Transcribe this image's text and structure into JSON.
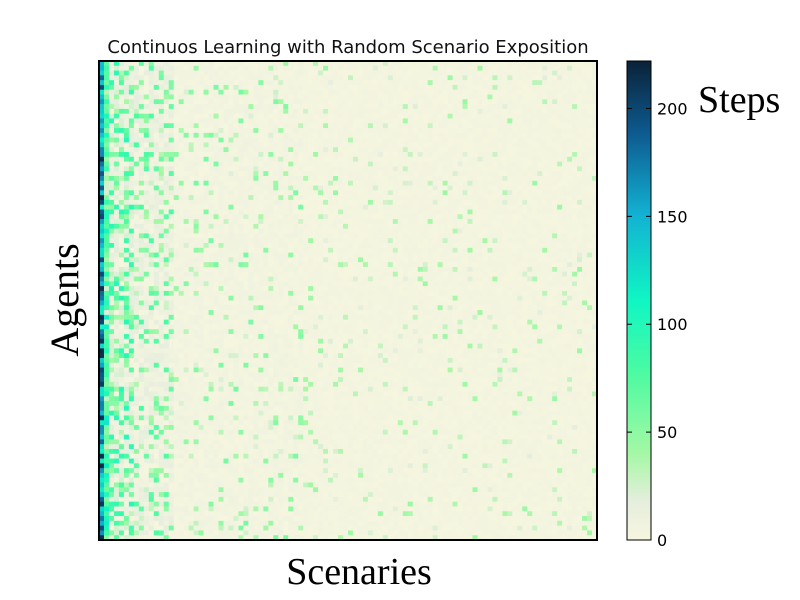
{
  "chart_data": {
    "type": "heatmap",
    "title": "Continuos Learning with Random Scenario Exposition",
    "xlabel": "Scenaries",
    "ylabel": "Agents",
    "colorbar": {
      "label": "Steps",
      "ticks": [
        0,
        50,
        100,
        150,
        200
      ],
      "range": [
        0,
        222
      ],
      "colormap": "YlGnBu-like (cream → light green → aqua → teal → navy)",
      "stops": [
        "#f6f6df",
        "#ecf7d6",
        "#a5f8a5",
        "#4bfba2",
        "#10f6c4",
        "#12b1d2",
        "#0d5a8f",
        "#0a2238"
      ]
    },
    "grid": false,
    "legend": "right",
    "rows": 100,
    "columns": 100,
    "values_description": "First column (scenario 1) mostly 150-222 steps; columns 2-14 frequently 40-120; remaining columns mostly 0-40 with sparse light green cells"
  }
}
